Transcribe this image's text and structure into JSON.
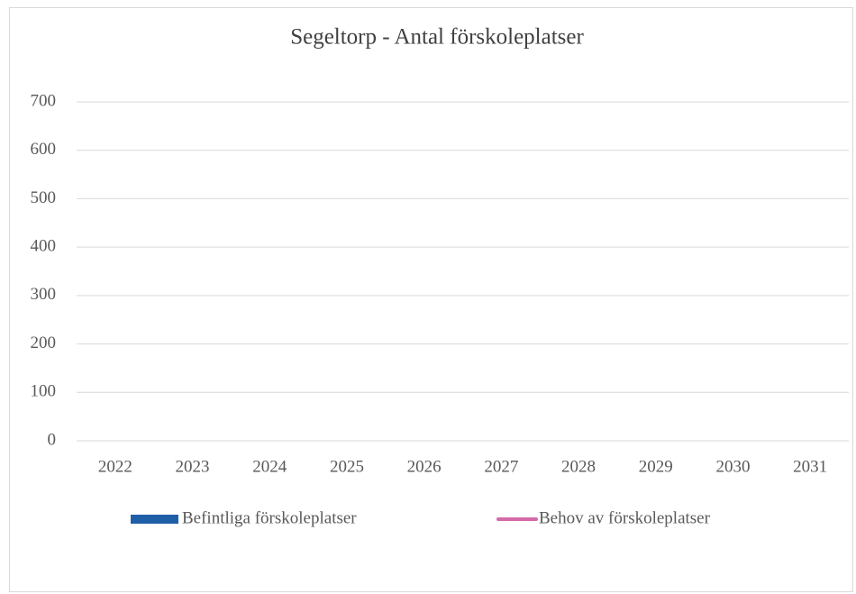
{
  "chart_data": {
    "type": "bar",
    "title": "Segeltorp - Antal förskoleplatser",
    "categories": [
      "2022",
      "2023",
      "2024",
      "2025",
      "2026",
      "2027",
      "2028",
      "2029",
      "2030",
      "2031"
    ],
    "series": [
      {
        "name": "Befintliga förskoleplatser",
        "type": "bar",
        "color": "#1f5fa8",
        "values": [
          null,
          null,
          null,
          null,
          null,
          null,
          null,
          null,
          null,
          null
        ]
      },
      {
        "name": "Behov av förskoleplatser",
        "type": "line",
        "color": "#d46aa8",
        "values": [
          null,
          null,
          null,
          null,
          null,
          null,
          null,
          null,
          null,
          null
        ]
      }
    ],
    "ylim": [
      0,
      700
    ],
    "yticks": [
      0,
      100,
      200,
      300,
      400,
      500,
      600,
      700
    ],
    "grid": true,
    "legend": "bottom"
  }
}
